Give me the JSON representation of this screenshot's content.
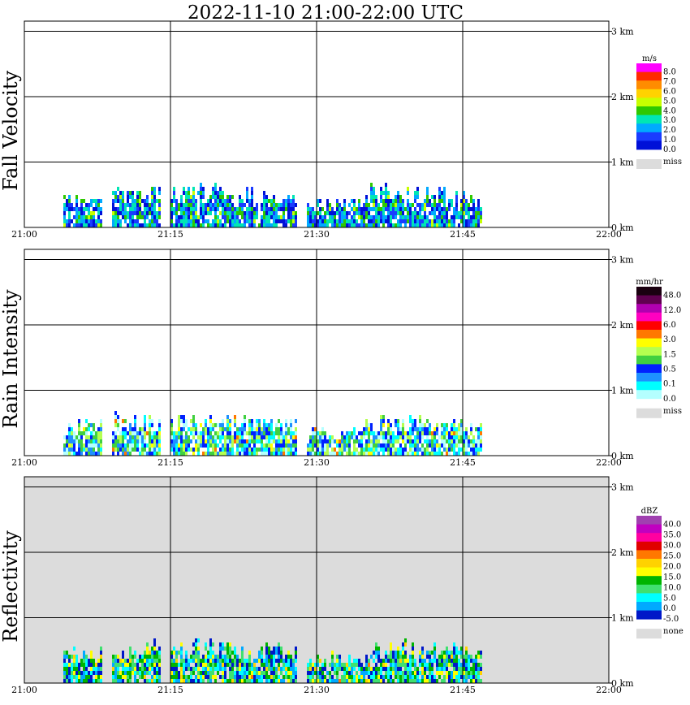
{
  "title": "2022-11-10   21:00-22:00 UTC",
  "chart_data": [
    {
      "type": "heatmap",
      "ylabel": "Fall Velocity",
      "x_ticks": [
        "21:00",
        "21:15",
        "21:30",
        "21:45",
        "22:00"
      ],
      "y_ticks": [
        "0 km",
        "1 km",
        "2 km",
        "3 km"
      ],
      "xlim": [
        "21:00",
        "22:00"
      ],
      "ylim_km": [
        0,
        3.2
      ],
      "grid": true,
      "background": "#ffffff",
      "legend": {
        "unit": "m/s",
        "labels": [
          "8.0",
          "7.0",
          "6.0",
          "5.0",
          "4.0",
          "3.0",
          "2.0",
          "1.0",
          "0.0"
        ],
        "colors": [
          "#ff00ff",
          "#ff2a00",
          "#ff8c00",
          "#ffd200",
          "#c8ff00",
          "#2fc800",
          "#00e6b4",
          "#00aaff",
          "#1a3cff",
          "#0010d8"
        ],
        "missing_label": "miss",
        "missing_color": "#dcdcdc"
      },
      "echo_columns": [
        {
          "start_min": 4,
          "end_min": 8,
          "top_km": 0.6
        },
        {
          "start_min": 9,
          "end_min": 14,
          "top_km": 0.7
        },
        {
          "start_min": 15,
          "end_min": 22,
          "top_km": 0.7
        },
        {
          "start_min": 22,
          "end_min": 28,
          "top_km": 0.65
        },
        {
          "start_min": 29,
          "end_min": 35,
          "top_km": 0.5
        },
        {
          "start_min": 35,
          "end_min": 40,
          "top_km": 0.7
        },
        {
          "start_min": 40,
          "end_min": 47,
          "top_km": 0.65
        }
      ]
    },
    {
      "type": "heatmap",
      "ylabel": "Rain Intensity",
      "x_ticks": [
        "21:00",
        "21:15",
        "21:30",
        "21:45",
        "22:00"
      ],
      "y_ticks": [
        "0 km",
        "1 km",
        "2 km",
        "3 km"
      ],
      "xlim": [
        "21:00",
        "22:00"
      ],
      "ylim_km": [
        0,
        3.2
      ],
      "grid": true,
      "background": "#ffffff",
      "legend": {
        "unit": "mm/hr",
        "labels": [
          "48.0",
          "12.0",
          "6.0",
          "3.0",
          "1.5",
          "0.5",
          "0.1",
          "0.0"
        ],
        "colors": [
          "#1a0010",
          "#600050",
          "#b000b0",
          "#ff00c0",
          "#ff0000",
          "#ff7800",
          "#ffff00",
          "#b4ff50",
          "#40d040",
          "#0020ff",
          "#1e90ff",
          "#00ffff",
          "#b4ffff"
        ],
        "missing_label": "miss",
        "missing_color": "#dcdcdc"
      },
      "echo_columns": [
        {
          "start_min": 4,
          "end_min": 8,
          "top_km": 0.6
        },
        {
          "start_min": 9,
          "end_min": 14,
          "top_km": 0.7
        },
        {
          "start_min": 15,
          "end_min": 22,
          "top_km": 0.7
        },
        {
          "start_min": 22,
          "end_min": 28,
          "top_km": 0.65
        },
        {
          "start_min": 29,
          "end_min": 35,
          "top_km": 0.5
        },
        {
          "start_min": 35,
          "end_min": 40,
          "top_km": 0.7
        },
        {
          "start_min": 40,
          "end_min": 47,
          "top_km": 0.65
        }
      ]
    },
    {
      "type": "heatmap",
      "ylabel": "Reflectivity",
      "x_ticks": [
        "21:00",
        "21:15",
        "21:30",
        "21:45",
        "22:00"
      ],
      "y_ticks": [
        "0 km",
        "1 km",
        "2 km",
        "3 km"
      ],
      "xlim": [
        "21:00",
        "22:00"
      ],
      "ylim_km": [
        0,
        3.2
      ],
      "grid": true,
      "background": "#dcdcdc",
      "legend": {
        "unit": "dBZ",
        "labels": [
          "40.0",
          "35.0",
          "30.0",
          "25.0",
          "20.0",
          "15.0",
          "10.0",
          "5.0",
          "0.0",
          "-5.0"
        ],
        "colors": [
          "#a040b0",
          "#c000c0",
          "#ff00a0",
          "#e00000",
          "#ff7800",
          "#ffd200",
          "#ffff00",
          "#00b400",
          "#40e070",
          "#00ffff",
          "#00aaff",
          "#0018c8"
        ],
        "missing_label": "none",
        "missing_color": "#dcdcdc"
      },
      "echo_columns": [
        {
          "start_min": 4,
          "end_min": 8,
          "top_km": 0.6
        },
        {
          "start_min": 9,
          "end_min": 14,
          "top_km": 0.7
        },
        {
          "start_min": 15,
          "end_min": 22,
          "top_km": 0.7
        },
        {
          "start_min": 22,
          "end_min": 28,
          "top_km": 0.65
        },
        {
          "start_min": 29,
          "end_min": 35,
          "top_km": 0.5
        },
        {
          "start_min": 35,
          "end_min": 40,
          "top_km": 0.7
        },
        {
          "start_min": 40,
          "end_min": 47,
          "top_km": 0.65
        }
      ]
    }
  ]
}
